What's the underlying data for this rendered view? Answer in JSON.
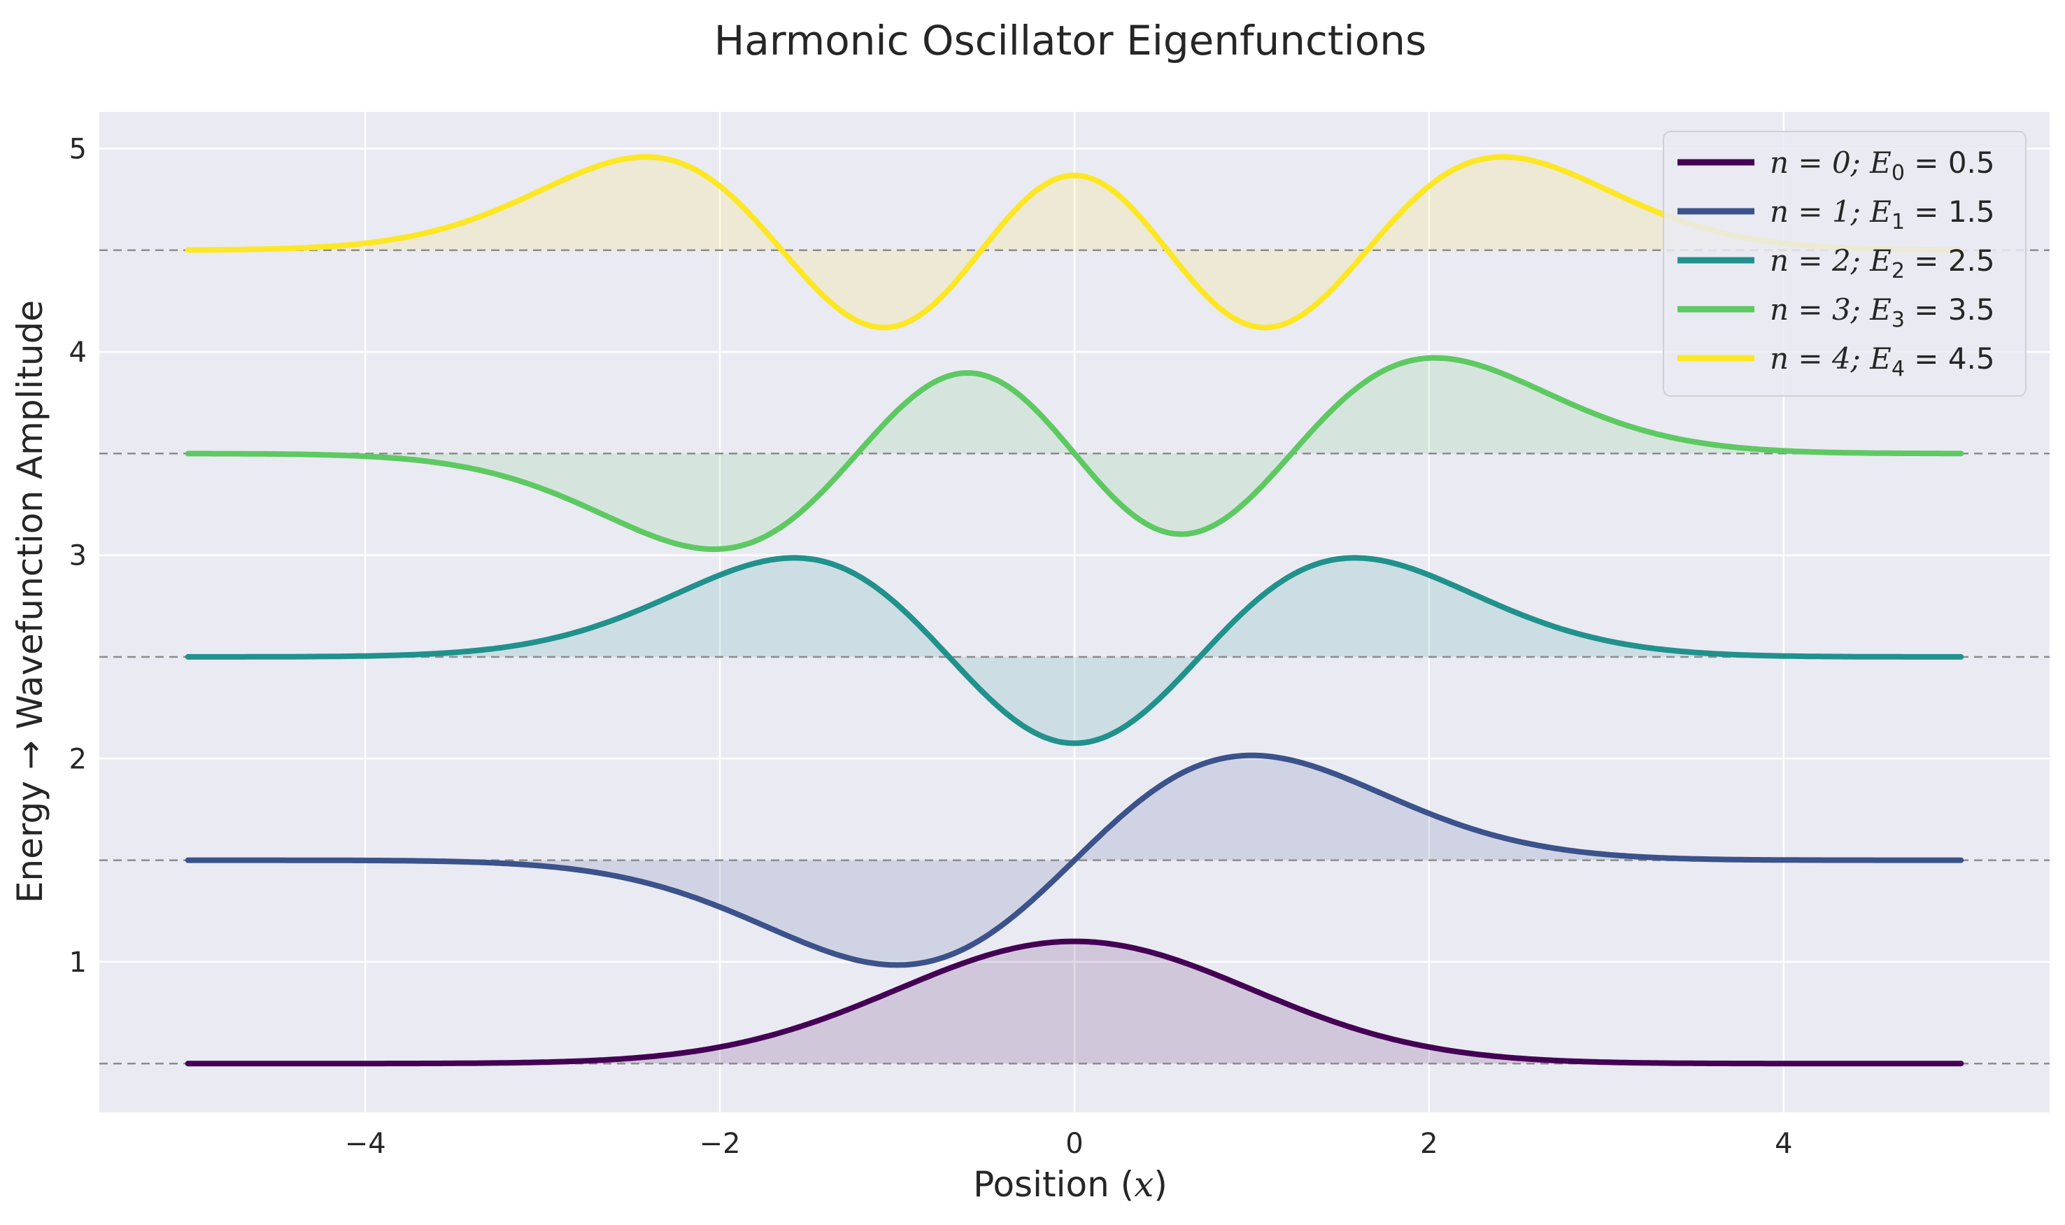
{
  "chart_data": {
    "type": "line",
    "title": "Harmonic Oscillator Eigenfunctions",
    "xlabel": "Position (x)",
    "xlabel_prefix": "Position (",
    "xlabel_var": "x",
    "xlabel_suffix": ")",
    "ylabel": "Energy → Wavefunction Amplitude",
    "xlim": [
      -5.5,
      5.5
    ],
    "ylim": [
      0.26,
      5.18
    ],
    "x_ticks": [
      -4,
      -2,
      0,
      2,
      4
    ],
    "x_tick_labels": [
      "−4",
      "−2",
      "0",
      "2",
      "4"
    ],
    "y_ticks": [
      1,
      2,
      3,
      4,
      5
    ],
    "y_tick_labels": [
      "1",
      "2",
      "3",
      "4",
      "5"
    ],
    "x_range": [
      -5,
      5
    ],
    "grid": true,
    "legend_position": "top-right",
    "series": [
      {
        "n": 0,
        "energy": 0.5,
        "legend_n": "n = 0; ",
        "legend_E": "E",
        "legend_sub": "0",
        "legend_val": " = 0.5",
        "color": "#440154"
      },
      {
        "n": 1,
        "energy": 1.5,
        "legend_n": "n = 1; ",
        "legend_E": "E",
        "legend_sub": "1",
        "legend_val": " = 1.5",
        "color": "#3b528b"
      },
      {
        "n": 2,
        "energy": 2.5,
        "legend_n": "n = 2; ",
        "legend_E": "E",
        "legend_sub": "2",
        "legend_val": " = 2.5",
        "color": "#21918c"
      },
      {
        "n": 3,
        "energy": 3.5,
        "legend_n": "n = 3; ",
        "legend_E": "E",
        "legend_sub": "3",
        "legend_val": " = 3.5",
        "color": "#5ec962"
      },
      {
        "n": 4,
        "energy": 4.5,
        "legend_n": "n = 4; ",
        "legend_E": "E",
        "legend_sub": "4",
        "legend_val": " = 4.5",
        "color": "#fde725"
      }
    ],
    "wavefunction_scale": 0.8,
    "colors": {
      "plot_background": "#eaeaf2",
      "grid": "#ffffff",
      "baseline": "#8c8c8c"
    }
  }
}
